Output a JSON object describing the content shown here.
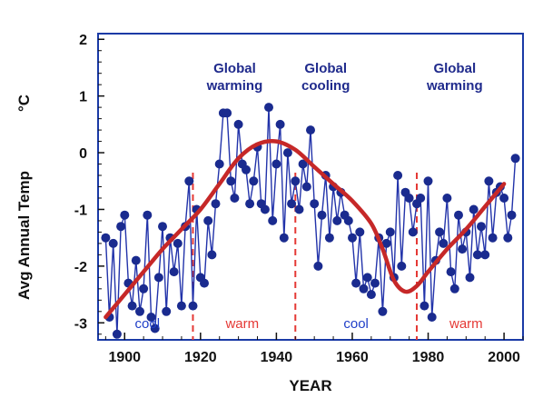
{
  "chart_data": {
    "type": "line",
    "xlabel": "YEAR",
    "ylabel": "Avg Annual Temp",
    "ylabel_unit": "°C",
    "xlim": [
      1893,
      2005
    ],
    "ylim": [
      -3.3,
      2.1
    ],
    "x_ticks": [
      1900,
      1920,
      1940,
      1960,
      1980,
      2000
    ],
    "y_ticks": [
      -3,
      -2,
      -1,
      0,
      1,
      2
    ],
    "colors": {
      "frame": "#1a3aa6",
      "series": "#2233aa",
      "marker": "#1a2b8f",
      "trend": "#c62828",
      "divider": "#e53935",
      "period_text": "#1f2a8c",
      "cool_text": "#1f3ec8",
      "warm_text": "#e53935"
    },
    "period_labels": [
      {
        "line1": "Global",
        "line2": "warming",
        "x": 1929
      },
      {
        "line1": "Global",
        "line2": "cooling",
        "x": 1953
      },
      {
        "line1": "Global",
        "line2": "warming",
        "x": 1987
      }
    ],
    "dividers": [
      1918,
      1945,
      1977
    ],
    "phase_labels": [
      {
        "text": "cool",
        "x": 1906,
        "color_key": "cool_text"
      },
      {
        "text": "warm",
        "x": 1931,
        "color_key": "warm_text"
      },
      {
        "text": "cool",
        "x": 1961,
        "color_key": "cool_text"
      },
      {
        "text": "warm",
        "x": 1990,
        "color_key": "warm_text"
      }
    ],
    "series": [
      {
        "x": [
          1895,
          1896,
          1897,
          1898,
          1899,
          1900,
          1901,
          1902,
          1903,
          1904,
          1905,
          1906,
          1907,
          1908,
          1909,
          1910,
          1911,
          1912,
          1913,
          1914,
          1915,
          1916,
          1917,
          1918,
          1919,
          1920,
          1921,
          1922,
          1923,
          1924,
          1925,
          1926,
          1927,
          1928,
          1929,
          1930,
          1931,
          1932,
          1933,
          1934,
          1935,
          1936,
          1937,
          1938,
          1939,
          1940,
          1941,
          1942,
          1943,
          1944,
          1945,
          1946,
          1947,
          1948,
          1949,
          1950,
          1951,
          1952,
          1953,
          1954,
          1955,
          1956,
          1957,
          1958,
          1959,
          1960,
          1961,
          1962,
          1963,
          1964,
          1965,
          1966,
          1967,
          1968,
          1969,
          1970,
          1971,
          1972,
          1973,
          1974,
          1975,
          1976,
          1977,
          1978,
          1979,
          1980,
          1981,
          1982,
          1983,
          1984,
          1985,
          1986,
          1987,
          1988,
          1989,
          1990,
          1991,
          1992,
          1993,
          1994,
          1995,
          1996,
          1997,
          1998,
          1999,
          2000,
          2001,
          2002,
          2003
        ],
        "y": [
          -1.5,
          -2.9,
          -1.6,
          -3.2,
          -1.3,
          -1.1,
          -2.3,
          -2.7,
          -1.9,
          -2.8,
          -2.4,
          -1.1,
          -2.9,
          -3.1,
          -2.2,
          -1.3,
          -2.8,
          -1.5,
          -2.1,
          -1.6,
          -2.7,
          -1.3,
          -0.5,
          -2.7,
          -1.0,
          -2.2,
          -2.3,
          -1.2,
          -1.8,
          -0.9,
          -0.2,
          0.7,
          0.7,
          -0.5,
          -0.8,
          0.5,
          -0.2,
          -0.3,
          -0.9,
          -0.5,
          0.1,
          -0.9,
          -1.0,
          0.8,
          -1.2,
          -0.2,
          0.5,
          -1.5,
          0.0,
          -0.9,
          -0.5,
          -1.0,
          -0.2,
          -0.6,
          0.4,
          -0.9,
          -2.0,
          -1.1,
          -0.4,
          -1.5,
          -0.6,
          -1.2,
          -0.7,
          -1.1,
          -1.2,
          -1.5,
          -2.3,
          -1.4,
          -2.4,
          -2.2,
          -2.5,
          -2.3,
          -1.5,
          -2.8,
          -1.6,
          -1.4,
          -2.2,
          -0.4,
          -2.0,
          -0.7,
          -0.8,
          -1.4,
          -0.9,
          -0.8,
          -2.7,
          -0.5,
          -2.9,
          -1.9,
          -1.4,
          -1.6,
          -0.8,
          -2.1,
          -2.4,
          -1.1,
          -1.7,
          -1.4,
          -2.2,
          -1.0,
          -1.8,
          -1.3,
          -1.8,
          -0.5,
          -1.5,
          -0.7,
          -0.6,
          -0.8,
          -1.5,
          -1.1,
          -0.1
        ]
      }
    ],
    "trend": {
      "x": [
        1895,
        1900,
        1905,
        1910,
        1915,
        1920,
        1925,
        1930,
        1935,
        1940,
        1945,
        1950,
        1955,
        1960,
        1965,
        1968,
        1971,
        1974,
        1977,
        1980,
        1985,
        1990,
        1995,
        2000
      ],
      "y": [
        -2.9,
        -2.5,
        -2.1,
        -1.7,
        -1.35,
        -1.0,
        -0.55,
        -0.1,
        0.15,
        0.2,
        0.05,
        -0.25,
        -0.55,
        -0.85,
        -1.25,
        -1.7,
        -2.25,
        -2.45,
        -2.35,
        -2.1,
        -1.7,
        -1.35,
        -0.95,
        -0.55
      ]
    }
  }
}
